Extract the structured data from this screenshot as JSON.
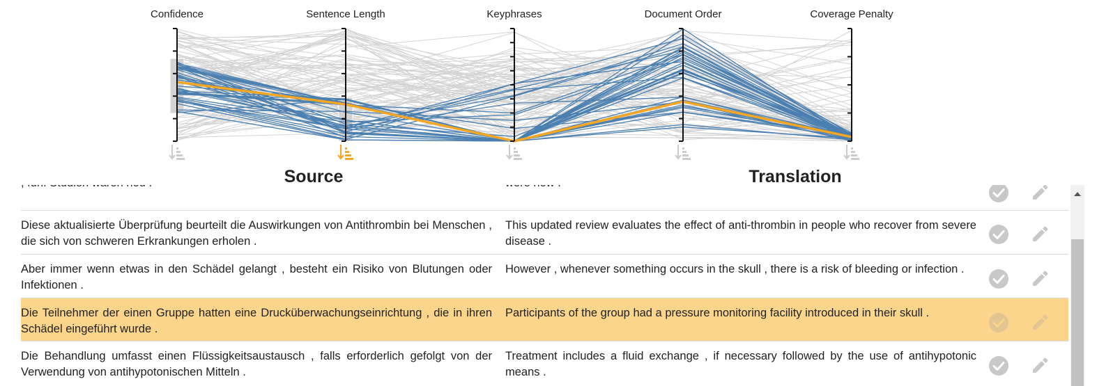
{
  "axes": [
    {
      "label": "Confidence"
    },
    {
      "label": "Sentence Length"
    },
    {
      "label": "Keyphrases"
    },
    {
      "label": "Document Order"
    },
    {
      "label": "Coverage Penalty"
    }
  ],
  "active_sort_axis": "Sentence Length",
  "colors": {
    "highlight_line": "#f5a623",
    "selected_line": "#4a7fb0",
    "background_line": "#d4d4d4",
    "row_highlight": "#fbd58b",
    "sort_active": "#f5a623",
    "sort_inactive": "#cccccc",
    "action_icon": "#c8c8c8"
  },
  "columns": {
    "source": "Source",
    "translation": "Translation"
  },
  "rows": [
    {
      "source": ", fünf Studien waren neu .",
      "translation": "were new .",
      "highlighted": false
    },
    {
      "source": "Diese aktualisierte Überprüfung beurteilt die Auswirkungen von Antithrombin bei Menschen , die sich von schweren Erkrankungen erholen .",
      "translation": "This updated review evaluates the effect of anti-thrombin in people who recover from severe disease .",
      "highlighted": false
    },
    {
      "source": "Aber immer wenn etwas in den Schädel gelangt , besteht ein Risiko von Blutungen oder Infektionen .",
      "translation": "However , whenever something occurs in the skull , there is a risk of bleeding or infection .",
      "highlighted": false
    },
    {
      "source": "Die Teilnehmer der einen Gruppe hatten eine Drucküberwachungseinrichtung , die in ihren Schädel eingeführt wurde .",
      "translation": "Participants of the group had a pressure monitoring facility introduced in their skull .",
      "highlighted": true
    },
    {
      "source": "Die Behandlung umfasst einen Flüssigkeitsaustausch , falls erforderlich gefolgt von der Verwendung von antihypotonischen Mitteln .",
      "translation": "Treatment includes a fluid exchange , if necessary followed by the use of antihypotonic means .",
      "highlighted": false
    }
  ],
  "icons": {
    "sort": "sort-descending-icon",
    "accept": "check-circle-icon",
    "edit": "pencil-icon"
  }
}
